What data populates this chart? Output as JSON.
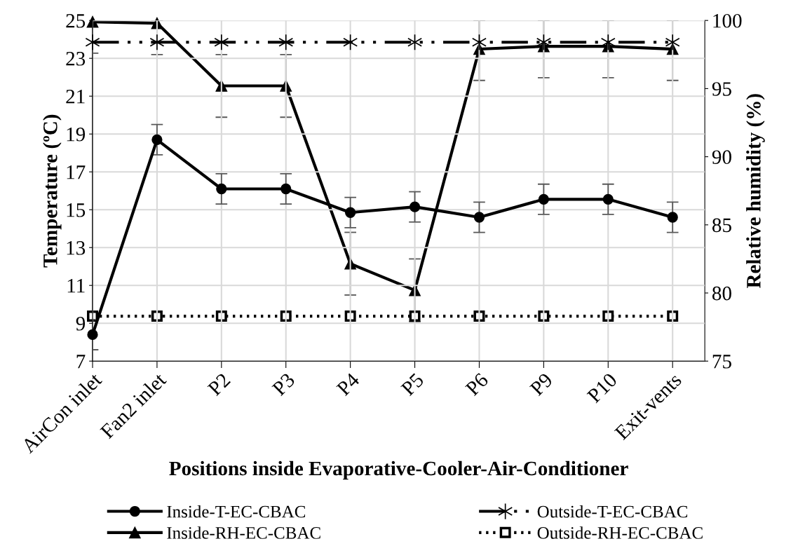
{
  "chart_data": {
    "type": "line",
    "xlabel": "Positions inside Evaporative-Cooler-Air-Conditioner",
    "ylabel": "Temperature (ºC)",
    "y2label": "Relative humidity (%)",
    "categories": [
      "AirCon inlet",
      "Fan2 inlet",
      "P2",
      "P3",
      "P4",
      "P5",
      "P6",
      "P9",
      "P10",
      "Exit-vents"
    ],
    "series": [
      {
        "name": "Inside-T-EC-CBAC",
        "color": "#000000",
        "marker": "circle",
        "line_style": "solid",
        "values": [
          8.4,
          18.7,
          16.1,
          16.1,
          14.85,
          15.15,
          14.6,
          15.55,
          15.55,
          14.6
        ],
        "errors": [
          0.8,
          0.8,
          0.8,
          0.8,
          0.8,
          0.8,
          0.8,
          0.8,
          0.8,
          0.8
        ]
      },
      {
        "name": "Outside-T-EC-CBAC",
        "color": "#000000",
        "marker": "cross",
        "line_style": "dashed",
        "values": [
          23.85,
          23.85,
          23.85,
          23.85,
          23.85,
          23.85,
          23.85,
          23.85,
          23.85,
          23.85
        ]
      },
      {
        "name": "Inside-RH-EC-CBAC",
        "color": "#000000",
        "marker": "triangle",
        "line_style": "solid",
        "axis": "y2",
        "values": [
          99.9,
          99.8,
          95.2,
          95.2,
          82.15,
          80.2,
          97.9,
          98.1,
          98.1,
          97.9
        ],
        "errors": [
          [
            97.6,
            100
          ],
          [
            97.5,
            100
          ],
          2.3,
          2.3,
          2.3,
          2.3,
          [
            95.6,
            100
          ],
          [
            95.8,
            100
          ],
          [
            95.8,
            100
          ],
          [
            95.6,
            100
          ]
        ]
      },
      {
        "name": "Outside-RH-EC-CBAC",
        "color": "#000000",
        "marker": "square",
        "line_style": "dotted",
        "axis": "y2",
        "values": [
          78.3,
          78.3,
          78.3,
          78.3,
          78.3,
          78.3,
          78.3,
          78.3,
          78.3,
          78.3
        ]
      }
    ],
    "ylim": [
      7,
      25
    ],
    "yticks": [
      7,
      9,
      11,
      13,
      15,
      17,
      19,
      21,
      23,
      25
    ],
    "y2lim": [
      75,
      100
    ],
    "y2ticks": [
      75,
      80,
      85,
      90,
      95,
      100
    ],
    "grid": true,
    "legend": "bottom"
  }
}
